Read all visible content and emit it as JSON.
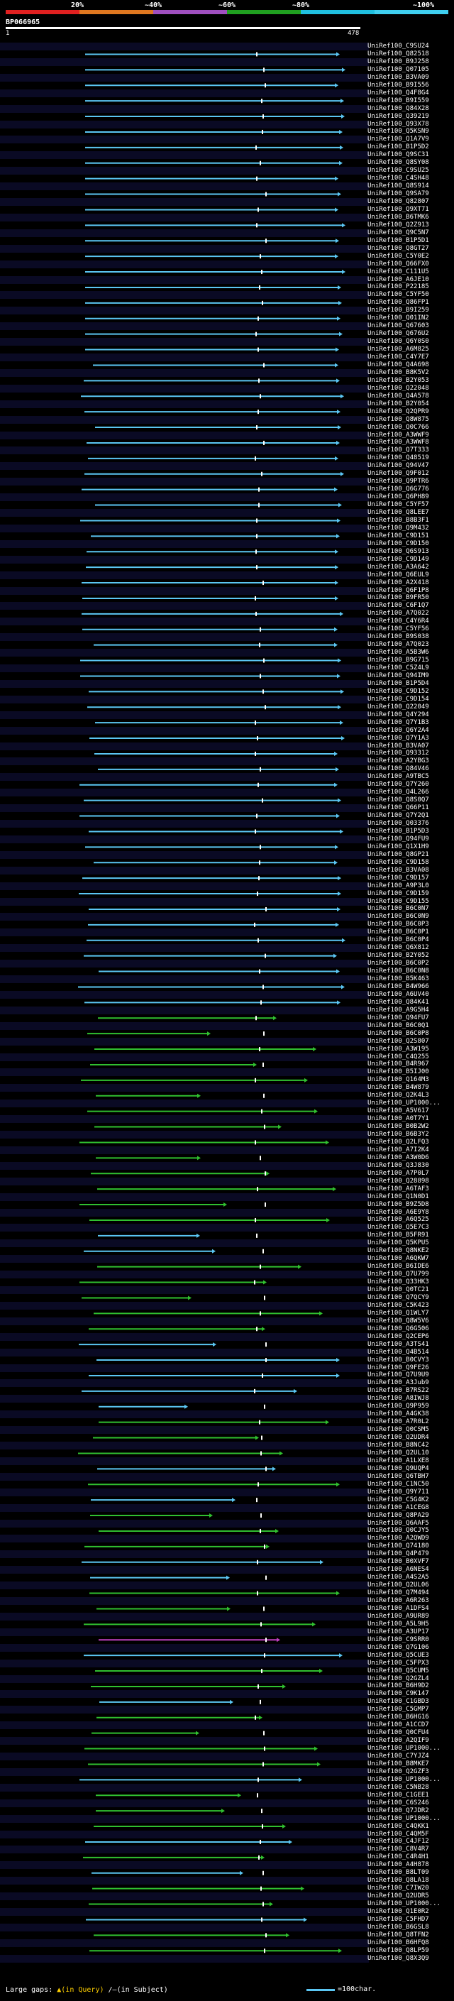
{
  "legend": {
    "labels": [
      "20%",
      "~40%",
      "~60%",
      "~80%",
      "~100%"
    ],
    "colors": [
      "#e02020",
      "#e07820",
      "#a050c0",
      "#20a020",
      "#20c0e0",
      "#40d0f0"
    ]
  },
  "query": {
    "name": "BP066965",
    "start": "1",
    "end": "478"
  },
  "hits": [
    "UniRef100_C9SU24",
    "UniRef100_Q82518",
    "UniRef100_B9J258",
    "UniRef100_Q07105",
    "UniRef100_B3VA09",
    "UniRef100_B9I556",
    "UniRef100_Q4F8G4",
    "UniRef100_B9I559",
    "UniRef100_Q84X28",
    "UniRef100_Q39219",
    "UniRef100_Q93X78",
    "UniRef100_Q5KSN9",
    "UniRef100_Q1A7V9",
    "UniRef100_B1P5D2",
    "UniRef100_Q9SC31",
    "UniRef100_Q8SY08",
    "UniRef100_C9SU25",
    "UniRef100_C4SH48",
    "UniRef100_Q8S914",
    "UniRef100_Q9SA79",
    "UniRef100_Q82807",
    "UniRef100_Q9XT71",
    "UniRef100_B6TMK6",
    "UniRef100_Q2Z913",
    "UniRef100_Q9C5N7",
    "UniRef100_B1P5D1",
    "UniRef100_Q8GT27",
    "UniRef100_C5Y0E2",
    "UniRef100_Q66FX0",
    "UniRef100_C111U5",
    "UniRef100_A6JE10",
    "UniRef100_P22185",
    "UniRef100_C5YF50",
    "UniRef100_Q86FP1",
    "UniRef100_B9I259",
    "UniRef100_Q01IN2",
    "UniRef100_Q67603",
    "UniRef100_Q676U2",
    "UniRef100_Q6Y0S0",
    "UniRef100_A6M825",
    "UniRef100_C4Y7E7",
    "UniRef100_Q4A698",
    "UniRef100_B8K5V2",
    "UniRef100_B2Y053",
    "UniRef100_Q22048",
    "UniRef100_Q4A578",
    "UniRef100_B2Y054",
    "UniRef100_Q2QPR9",
    "UniRef100_Q8W875",
    "UniRef100_Q0C766",
    "UniRef100_A3WWF9",
    "UniRef100_A3WWF8",
    "UniRef100_Q7T333",
    "UniRef100_Q48519",
    "UniRef100_Q94V47",
    "UniRef100_Q9F012",
    "UniRef100_Q9PTR6",
    "UniRef100_Q6G776",
    "UniRef100_Q6PH89",
    "UniRef100_C5YF57",
    "UniRef100_Q8LEE7",
    "UniRef100_B8B3F1",
    "UniRef100_Q9M432",
    "UniRef100_C9D151",
    "UniRef100_C9D150",
    "UniRef100_Q6S913",
    "UniRef100_C9D149",
    "UniRef100_A3A642",
    "UniRef100_Q6EUL9",
    "UniRef100_A2X418",
    "UniRef100_Q6F1P8",
    "UniRef100_B9FR50",
    "UniRef100_C6F1Q7",
    "UniRef100_A7Q022",
    "UniRef100_C4Y6R4",
    "UniRef100_C5YF56",
    "UniRef100_B9S038",
    "UniRef100_A7Q023",
    "UniRef100_A5B3W6",
    "UniRef100_B9G715",
    "UniRef100_C5Z4L9",
    "UniRef100_Q94IM9",
    "UniRef100_B1P5D4",
    "UniRef100_C9D152",
    "UniRef100_C9D154",
    "UniRef100_Q22049",
    "UniRef100_Q4Y294",
    "UniRef100_Q7Y1B3",
    "UniRef100_Q6Y2A4",
    "UniRef100_Q7Y1A3",
    "UniRef100_B3VA07",
    "UniRef100_Q93312",
    "UniRef100_A2YBG3",
    "UniRef100_Q84V46",
    "UniRef100_A9TBC5",
    "UniRef100_Q7Y260",
    "UniRef100_Q4L266",
    "UniRef100_Q8S0Q7",
    "UniRef100_Q66P11",
    "UniRef100_Q7Y2Q1",
    "UniRef100_Q03376",
    "UniRef100_B1P5D3",
    "UniRef100_Q94FU9",
    "UniRef100_Q1X1H9",
    "UniRef100_Q8GP21",
    "UniRef100_C9D158",
    "UniRef100_B3VA08",
    "UniRef100_C9D157",
    "UniRef100_A9P3L0",
    "UniRef100_C9D159",
    "UniRef100_C9D155",
    "UniRef100_B6C0N7",
    "UniRef100_B6C0N9",
    "UniRef100_B6C0P3",
    "UniRef100_B6C0P1",
    "UniRef100_B6C0P4",
    "UniRef100_Q6X812",
    "UniRef100_B2Y052",
    "UniRef100_B6C0P2",
    "UniRef100_B6C0N8",
    "UniRef100_B5K463",
    "UniRef100_B4W966",
    "UniRef100_A6UV40",
    "UniRef100_Q84K41",
    "UniRef100_A9G5H4",
    "UniRef100_Q94FU7",
    "UniRef100_B6C0Q1",
    "UniRef100_B6C0P8",
    "UniRef100_Q2S807",
    "UniRef100_A3W195",
    "UniRef100_C4Q255",
    "UniRef100_B4R967",
    "UniRef100_B5IJ00",
    "UniRef100_Q164M3",
    "UniRef100_B4W879",
    "UniRef100_Q2K4L3",
    "UniRef100_UP1000...",
    "UniRef100_A5V617",
    "UniRef100_A0T7Y1",
    "UniRef100_B0B2W2",
    "UniRef100_B6B3Y2",
    "UniRef100_Q2LFQ3",
    "UniRef100_A7I2K4",
    "UniRef100_A3W0D6",
    "UniRef100_Q3J830",
    "UniRef100_A7P0L7",
    "UniRef100_Q28898",
    "UniRef100_A6TAF3",
    "UniRef100_Q1N0D1",
    "UniRef100_B9Z5D8",
    "UniRef100_A6E9Y8",
    "UniRef100_A6Q525",
    "UniRef100_Q5E7C3",
    "UniRef100_B5FR91",
    "UniRef100_Q5KPU5",
    "UniRef100_Q8NKE2",
    "UniRef100_A6QKW7",
    "UniRef100_B6IDE6",
    "UniRef100_Q7U799",
    "UniRef100_Q33HK3",
    "UniRef100_Q0TC21",
    "UniRef100_Q7QCY9",
    "UniRef100_C5K423",
    "UniRef100_Q1WLY7",
    "UniRef100_Q8W5V6",
    "UniRef100_Q6G506",
    "UniRef100_Q2CEP6",
    "UniRef100_A3TS41",
    "UniRef100_Q4B514",
    "UniRef100_B0CVY3",
    "UniRef100_Q9FE26",
    "UniRef100_Q7U9U9",
    "UniRef100_A3Jub9",
    "UniRef100_B7RS22",
    "UniRef100_A8IWJ8",
    "UniRef100_Q9P959",
    "UniRef100_A4GK38",
    "UniRef100_A7R0L2",
    "UniRef100_Q0CSM5",
    "UniRef100_Q2UDR4",
    "UniRef100_B8NC42",
    "UniRef100_Q2UL10",
    "UniRef100_A1LXE8",
    "UniRef100_Q9UQP4",
    "UniRef100_Q6TBH7",
    "UniRef100_C1NC50",
    "UniRef100_Q9Y711",
    "UniRef100_C5G4K2",
    "UniRef100_A1CEG8",
    "UniRef100_Q8PA29",
    "UniRef100_Q6AAF5",
    "UniRef100_Q0CJY5",
    "UniRef100_A2QWD9",
    "UniRef100_Q74180",
    "UniRef100_Q4P479",
    "UniRef100_B0XVF7",
    "UniRef100_A6NES4",
    "UniRef100_A4S2A5",
    "UniRef100_Q2UL06",
    "UniRef100_Q7M494",
    "UniRef100_A6R263",
    "UniRef100_A1DFS4",
    "UniRef100_A9UR89",
    "UniRef100_A5L9H5",
    "UniRef100_A3UP17",
    "UniRef100_C9SRR0",
    "UniRef100_Q7G106",
    "UniRef100_Q5CUE3",
    "UniRef100_C5FPX3",
    "UniRef100_Q5CUM5",
    "UniRef100_Q2GZL4",
    "UniRef100_B6H9D2",
    "UniRef100_C9K147",
    "UniRef100_C1GBD3",
    "UniRef100_C5GMP7",
    "UniRef100_B6HG16",
    "UniRef100_A1CCD7",
    "UniRef100_Q0CFU4",
    "UniRef100_A2QIF9",
    "UniRef100_UP1000...",
    "UniRef100_C7YJZ4",
    "UniRef100_B8MKE7",
    "UniRef100_Q2GZF3",
    "UniRef100_UP1000...",
    "UniRef100_C5NB28",
    "UniRef100_C1GEE1",
    "UniRef100_C6S246",
    "UniRef100_Q7JDR2",
    "UniRef100_UP1000...",
    "UniRef100_C4QKK1",
    "UniRef100_C4QM5F",
    "UniRef100_C4JF12",
    "UniRef100_C8V4R7",
    "UniRef100_C4R4H1",
    "UniRef100_A4H878",
    "UniRef100_B8LT09",
    "UniRef100_Q8LA18",
    "UniRef100_C7IW20",
    "UniRef100_Q2UDR5",
    "UniRef100_UP1000...",
    "UniRef100_Q1E0R2",
    "UniRef100_C5FHD7",
    "UniRef100_B6GSL8",
    "UniRef100_Q8TFN2",
    "UniRef100_B6HFQ8",
    "UniRef100_Q8LP59",
    "UniRef100_Q8X3Q9"
  ],
  "footer": {
    "gaps_label": "Large gaps:",
    "gaps_query": "▲(in Query)",
    "gaps_subject": "/—(in Subject)",
    "scale_label": "=100char."
  }
}
